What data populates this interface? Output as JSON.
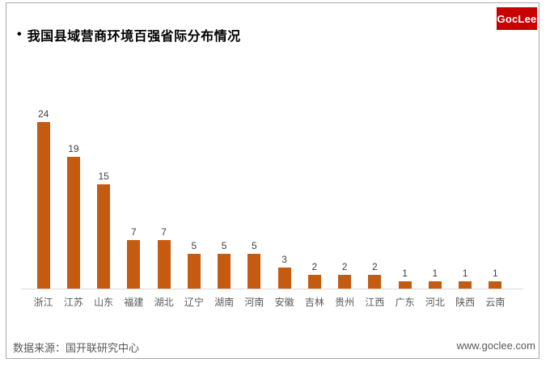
{
  "page": {
    "bullet": "•",
    "title": "我国县域营商环境百强省际分布情况",
    "logo_text": "GocLee",
    "source_label": "数据来源：国开联研究中心",
    "website": "www.goclee.com"
  },
  "colors": {
    "bar": "#c55a11",
    "logo_bg": "#c80000",
    "value_label": "#404040",
    "category_label": "#595959",
    "axis_line": "#d9d9d9",
    "frame_border": "#ababab"
  },
  "chart_data": {
    "type": "bar",
    "title": "我国县域营商环境百强省际分布情况",
    "categories": [
      "浙江",
      "江苏",
      "山东",
      "福建",
      "湖北",
      "辽宁",
      "湖南",
      "河南",
      "安徽",
      "吉林",
      "贵州",
      "江西",
      "广东",
      "河北",
      "陕西",
      "云南"
    ],
    "values": [
      24,
      19,
      15,
      7,
      7,
      5,
      5,
      5,
      3,
      2,
      2,
      2,
      1,
      1,
      1,
      1
    ],
    "xlabel": "",
    "ylabel": "",
    "ylim": [
      0,
      26
    ],
    "grid": false,
    "legend": false,
    "data_labels": true,
    "bar_color": "#c55a11",
    "source": "数据来源：国开联研究中心"
  }
}
